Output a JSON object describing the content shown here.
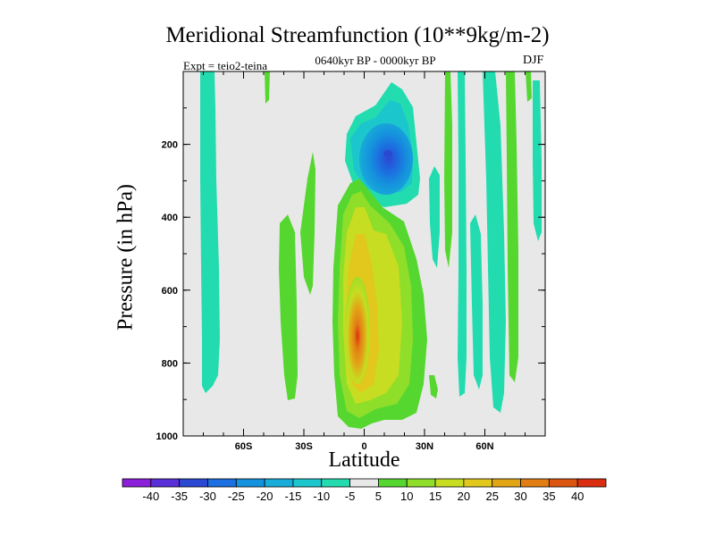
{
  "chart_data": {
    "type": "heatmap",
    "title": "Meridional Streamfunction (10**9kg/m-2)",
    "subtitle": "0640kyr BP - 0000kyr BP",
    "left_annotation": "Expt = teio2-teina",
    "right_annotation": "DJF",
    "xlabel": "Latitude",
    "ylabel": "Pressure (in hPa)",
    "xlim": [
      -90,
      90
    ],
    "ylim": [
      1000,
      0
    ],
    "x_ticks": [
      {
        "value": -60,
        "label": "60S"
      },
      {
        "value": -30,
        "label": "30S"
      },
      {
        "value": 0,
        "label": "0"
      },
      {
        "value": 30,
        "label": "30N"
      },
      {
        "value": 60,
        "label": "60N"
      }
    ],
    "y_ticks": [
      {
        "value": 200,
        "label": "200"
      },
      {
        "value": 400,
        "label": "400"
      },
      {
        "value": 600,
        "label": "600"
      },
      {
        "value": 800,
        "label": "800"
      },
      {
        "value": 1000,
        "label": "1000"
      }
    ],
    "colorbar": {
      "labels": [
        "-40",
        "-35",
        "-30",
        "-25",
        "-20",
        "-15",
        "-10",
        "-5",
        "5",
        "10",
        "15",
        "20",
        "25",
        "30",
        "35",
        "40"
      ],
      "colors": [
        "#8c1fd9",
        "#5a2ed8",
        "#2b48d2",
        "#1c6fe0",
        "#1592dd",
        "#18acd8",
        "#1bc6cc",
        "#22dcb0",
        "#e8e8e8",
        "#56d730",
        "#8fde2a",
        "#c6dd21",
        "#e2c81c",
        "#e2a516",
        "#e07e14",
        "#dc5612",
        "#db2e10"
      ]
    },
    "background_color": "#e8e8e8",
    "features": [
      {
        "name": "negative cell upper troposphere",
        "lat_center": 12,
        "p_center": 220,
        "min_value": -30
      },
      {
        "name": "positive cell tropics",
        "lat_center": -3,
        "p_center": 720,
        "max_value": 35
      },
      {
        "name": "positive band mid latitudes north",
        "lat_range": [
          10,
          45
        ],
        "p_range": [
          380,
          950
        ],
        "value": 10
      },
      {
        "name": "weak band -5 at 80S",
        "lat": -78,
        "value": -5
      },
      {
        "name": "weak band -5 at 65N",
        "lat": 65,
        "value": -5
      }
    ]
  }
}
